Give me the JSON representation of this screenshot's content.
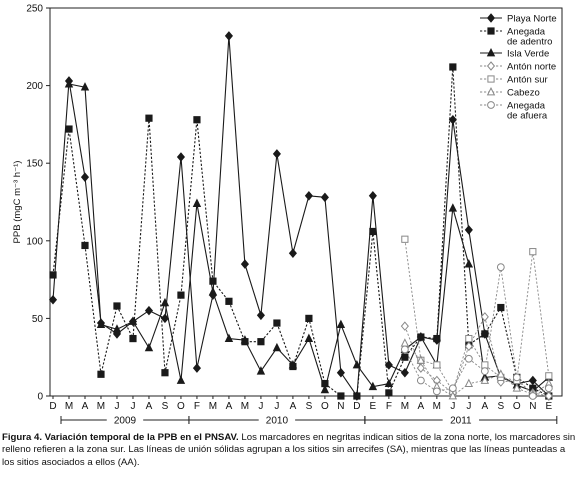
{
  "chart_data": {
    "type": "line",
    "ylabel": "PPB (mgC m⁻³ h⁻¹)",
    "ylim": [
      0,
      250
    ],
    "yticks": [
      0,
      50,
      100,
      150,
      200,
      250
    ],
    "categories": [
      "D",
      "M",
      "A",
      "M",
      "J",
      "J",
      "A",
      "S",
      "O",
      "F",
      "M",
      "A",
      "M",
      "J",
      "J",
      "A",
      "S",
      "O",
      "N",
      "D",
      "E",
      "F",
      "M",
      "A",
      "M",
      "J",
      "J",
      "A",
      "S",
      "O",
      "N",
      "E"
    ],
    "months": [
      "D",
      "M",
      "A",
      "M",
      "J",
      "J",
      "A",
      "S",
      "O",
      "F",
      "M",
      "A",
      "M",
      "J",
      "J",
      "A",
      "S",
      "O",
      "N",
      "D",
      "E",
      "F",
      "M",
      "A",
      "M",
      "J",
      "J",
      "A",
      "S",
      "O",
      "N",
      "E"
    ],
    "month_pos": [
      0,
      1,
      2,
      3,
      4,
      5,
      6,
      7,
      8,
      9,
      10,
      11,
      12,
      13,
      14,
      15,
      16,
      17,
      18,
      19,
      20,
      21,
      22,
      23,
      24,
      25,
      26,
      27,
      28,
      29,
      30,
      31
    ],
    "years": [
      {
        "label": "2009",
        "start": 0.5,
        "end": 8.5
      },
      {
        "label": "2010",
        "start": 8.5,
        "end": 19.5
      },
      {
        "label": "2011",
        "start": 19.5,
        "end": 31.5
      }
    ],
    "legend_position": "top-right",
    "series": [
      {
        "name": "Playa Norte",
        "marker": "diamond-filled",
        "line": "solid",
        "x": [
          0,
          1,
          2,
          3,
          4,
          5,
          6,
          7,
          8,
          9,
          10,
          11,
          12,
          13,
          14,
          15,
          16,
          17,
          18,
          19,
          20,
          21,
          22,
          23,
          24,
          25,
          26,
          27,
          28,
          29,
          30,
          31
        ],
        "y": [
          62,
          203,
          141,
          47,
          40,
          48,
          55,
          50,
          154,
          18,
          65,
          232,
          85,
          52,
          156,
          92,
          129,
          128,
          15,
          0,
          129,
          20,
          15,
          38,
          36,
          178,
          107,
          40,
          12,
          8,
          10,
          0
        ]
      },
      {
        "name": "Anegada de adentro",
        "marker": "square-filled",
        "line": "dashed",
        "x": [
          0,
          1,
          2,
          3,
          4,
          5,
          6,
          7,
          8,
          9,
          10,
          11,
          12,
          13,
          14,
          15,
          16,
          17,
          18,
          19,
          20,
          21,
          22,
          23,
          24,
          25,
          26,
          27,
          28,
          29,
          30,
          31
        ],
        "y": [
          78,
          172,
          97,
          14,
          58,
          37,
          179,
          15,
          65,
          178,
          74,
          61,
          35,
          35,
          47,
          19,
          50,
          8,
          0,
          0,
          106,
          2,
          25,
          38,
          37,
          212,
          33,
          40,
          57,
          12,
          5,
          0
        ]
      },
      {
        "name": "Isla Verde",
        "marker": "triangle-filled",
        "line": "solid",
        "x": [
          1,
          2,
          3,
          4,
          5,
          6,
          7,
          8,
          9,
          10,
          11,
          12,
          13,
          14,
          15,
          16,
          17,
          18,
          19,
          20,
          21,
          22,
          23,
          24,
          25,
          26,
          27,
          28,
          29,
          30,
          31
        ],
        "y": [
          201,
          199,
          46,
          43,
          48,
          31,
          60,
          10,
          124,
          67,
          37,
          36,
          16,
          31,
          20,
          37,
          4,
          46,
          20,
          6,
          8,
          30,
          38,
          20,
          121,
          85,
          12,
          13,
          7,
          3,
          12
        ]
      },
      {
        "name": "Antón norte",
        "marker": "diamond-open",
        "line": "dashed",
        "x": [
          22,
          23,
          24,
          25,
          26,
          27,
          28,
          29,
          30,
          31
        ],
        "y": [
          45,
          18,
          10,
          2,
          32,
          51,
          9,
          10,
          2,
          0
        ]
      },
      {
        "name": "Antón sur",
        "marker": "square-open",
        "line": "dashed",
        "x": [
          22,
          23,
          24,
          25,
          26,
          27,
          28,
          29,
          30,
          31
        ],
        "y": [
          101,
          23,
          20,
          3,
          37,
          20,
          12,
          10,
          93,
          13
        ]
      },
      {
        "name": "Cabezo",
        "marker": "triangle-open",
        "line": "dashed",
        "x": [
          22,
          23,
          24,
          25,
          26,
          27,
          28,
          29,
          30,
          31
        ],
        "y": [
          34,
          23,
          6,
          0,
          8,
          10,
          14,
          5,
          1,
          8
        ]
      },
      {
        "name": "Anegada de afuera",
        "marker": "circle-open",
        "line": "dashed",
        "x": [
          22,
          23,
          24,
          25,
          26,
          27,
          28,
          29,
          30,
          31
        ],
        "y": [
          30,
          10,
          3,
          5,
          24,
          16,
          83,
          12,
          0,
          5
        ]
      }
    ]
  },
  "caption": {
    "lead": "Figura 4. Variación temporal de la PPB en el PNSAV.",
    "body": " Los marcadores en negritas indican sitios de la zona norte, los marcadores sin relleno refieren a la zona sur. Las líneas de unión sólidas agrupan a los sitios sin arrecifes (SA), mientras que las líneas punteadas a los sitios asociados a ellos (AA)."
  },
  "colors": {
    "filled": "#1a1a1a",
    "open": "#888888",
    "axis": "#222222"
  }
}
